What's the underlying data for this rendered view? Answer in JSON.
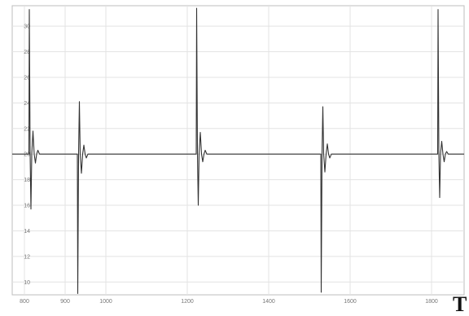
{
  "chart_data": {
    "type": "line",
    "title": "",
    "xlabel": "",
    "ylabel": "",
    "xlim": [
      770,
      1880
    ],
    "ylim": [
      9,
      31.6
    ],
    "grid": true,
    "x_ticks": [
      {
        "value": 800,
        "label": "800"
      },
      {
        "value": 900,
        "label": "900"
      },
      {
        "value": 1000,
        "label": "1000"
      },
      {
        "value": 1200,
        "label": "1200"
      },
      {
        "value": 1400,
        "label": "1400"
      },
      {
        "value": 1600,
        "label": "1600"
      },
      {
        "value": 1800,
        "label": "1800"
      }
    ],
    "y_ticks": [
      {
        "value": 10,
        "label": "10"
      },
      {
        "value": 12,
        "label": "12"
      },
      {
        "value": 14,
        "label": "14"
      },
      {
        "value": 16,
        "label": "16"
      },
      {
        "value": 18,
        "label": "18"
      },
      {
        "value": 20,
        "label": "20"
      },
      {
        "value": 22,
        "label": "22"
      },
      {
        "value": 24,
        "label": "24"
      },
      {
        "value": 26,
        "label": "26"
      },
      {
        "value": 28,
        "label": "28"
      },
      {
        "value": 30,
        "label": "30"
      }
    ],
    "series": [
      {
        "color": "#333333",
        "points": [
          [
            770,
            20
          ],
          [
            811,
            20
          ],
          [
            812,
            31.3
          ],
          [
            814,
            20
          ],
          [
            816,
            15.7
          ],
          [
            818,
            20
          ],
          [
            821,
            21.8
          ],
          [
            824,
            20
          ],
          [
            827,
            19.3
          ],
          [
            830,
            20
          ],
          [
            833,
            20.3
          ],
          [
            837,
            20
          ],
          [
            930,
            20
          ],
          [
            931,
            9.1
          ],
          [
            933,
            20
          ],
          [
            935,
            24.1
          ],
          [
            937,
            20
          ],
          [
            940,
            18.5
          ],
          [
            943,
            20
          ],
          [
            946,
            20.7
          ],
          [
            949,
            20
          ],
          [
            952,
            19.7
          ],
          [
            956,
            20
          ],
          [
            1222,
            20
          ],
          [
            1223,
            31.4
          ],
          [
            1225,
            20
          ],
          [
            1227,
            16.0
          ],
          [
            1229,
            20
          ],
          [
            1232,
            21.7
          ],
          [
            1235,
            20
          ],
          [
            1238,
            19.4
          ],
          [
            1241,
            20
          ],
          [
            1244,
            20.3
          ],
          [
            1248,
            20
          ],
          [
            1528,
            20
          ],
          [
            1529,
            9.2
          ],
          [
            1531,
            20
          ],
          [
            1533,
            23.7
          ],
          [
            1535,
            20
          ],
          [
            1538,
            18.6
          ],
          [
            1541,
            20
          ],
          [
            1544,
            20.8
          ],
          [
            1547,
            20
          ],
          [
            1550,
            19.7
          ],
          [
            1554,
            20
          ],
          [
            1815,
            20
          ],
          [
            1816,
            31.3
          ],
          [
            1818,
            20
          ],
          [
            1820,
            16.6
          ],
          [
            1822,
            20
          ],
          [
            1825,
            21.0
          ],
          [
            1828,
            20
          ],
          [
            1831,
            19.4
          ],
          [
            1834,
            20
          ],
          [
            1837,
            20.2
          ],
          [
            1841,
            20
          ],
          [
            1880,
            20
          ]
        ]
      }
    ]
  },
  "corner_text": "T"
}
